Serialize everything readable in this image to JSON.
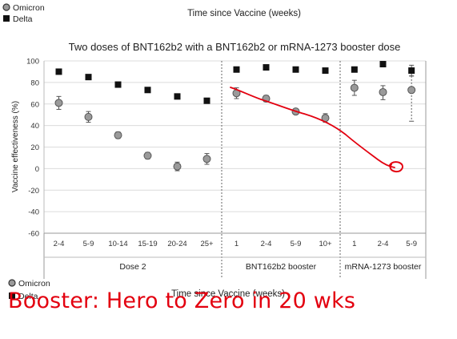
{
  "legend": {
    "omicron": "Omicron",
    "delta": "Delta"
  },
  "top_label": "Time since Vaccine (weeks)",
  "bottom_label": "Time since Vaccine (weeks)",
  "caption": "Booster: Hero to Zero in 20 wks",
  "colors": {
    "omicron": "#9a9a9a",
    "delta": "#111111",
    "annotation": "#e3000f"
  },
  "chart_data": {
    "type": "scatter",
    "title": "Two doses of BNT162b2 with a BNT162b2 or mRNA-1273 booster dose",
    "ylabel": "Vaccine effectiveness (%)",
    "xlabel": "Time since Vaccine (weeks)",
    "ylim": [
      -60,
      100
    ],
    "yticks": [
      -60,
      -40,
      -20,
      0,
      20,
      40,
      60,
      80,
      100
    ],
    "grid": true,
    "legend_position": "top-left",
    "groups": [
      {
        "name": "Dose 2",
        "categories": [
          "2-4",
          "5-9",
          "10-14",
          "15-19",
          "20-24",
          "25+"
        ]
      },
      {
        "name": "BNT162b2 booster",
        "categories": [
          "1",
          "2-4",
          "5-9",
          "10+"
        ]
      },
      {
        "name": "mRNA-1273 booster",
        "categories": [
          "1",
          "2-4",
          "5-9"
        ]
      }
    ],
    "series": [
      {
        "name": "Omicron",
        "marker": "circle",
        "values": [
          61,
          48,
          31,
          12,
          2,
          9,
          70,
          65,
          53,
          47,
          75,
          71,
          73
        ],
        "err_low": [
          55,
          43,
          28,
          9,
          -2,
          4,
          65,
          62,
          51,
          43,
          68,
          64,
          44
        ],
        "err_high": [
          67,
          53,
          34,
          15,
          6,
          14,
          75,
          68,
          55,
          51,
          82,
          77,
          86
        ]
      },
      {
        "name": "Delta",
        "marker": "square",
        "values": [
          90,
          85,
          78,
          73,
          67,
          63,
          92,
          94,
          92,
          91,
          92,
          97,
          91
        ],
        "err_low": [
          89,
          84,
          77,
          72,
          66,
          62,
          91,
          93,
          91,
          90,
          90,
          96,
          86
        ],
        "err_high": [
          91,
          86,
          79,
          74,
          68,
          64,
          93,
          95,
          93,
          92,
          94,
          98,
          96
        ]
      }
    ]
  }
}
